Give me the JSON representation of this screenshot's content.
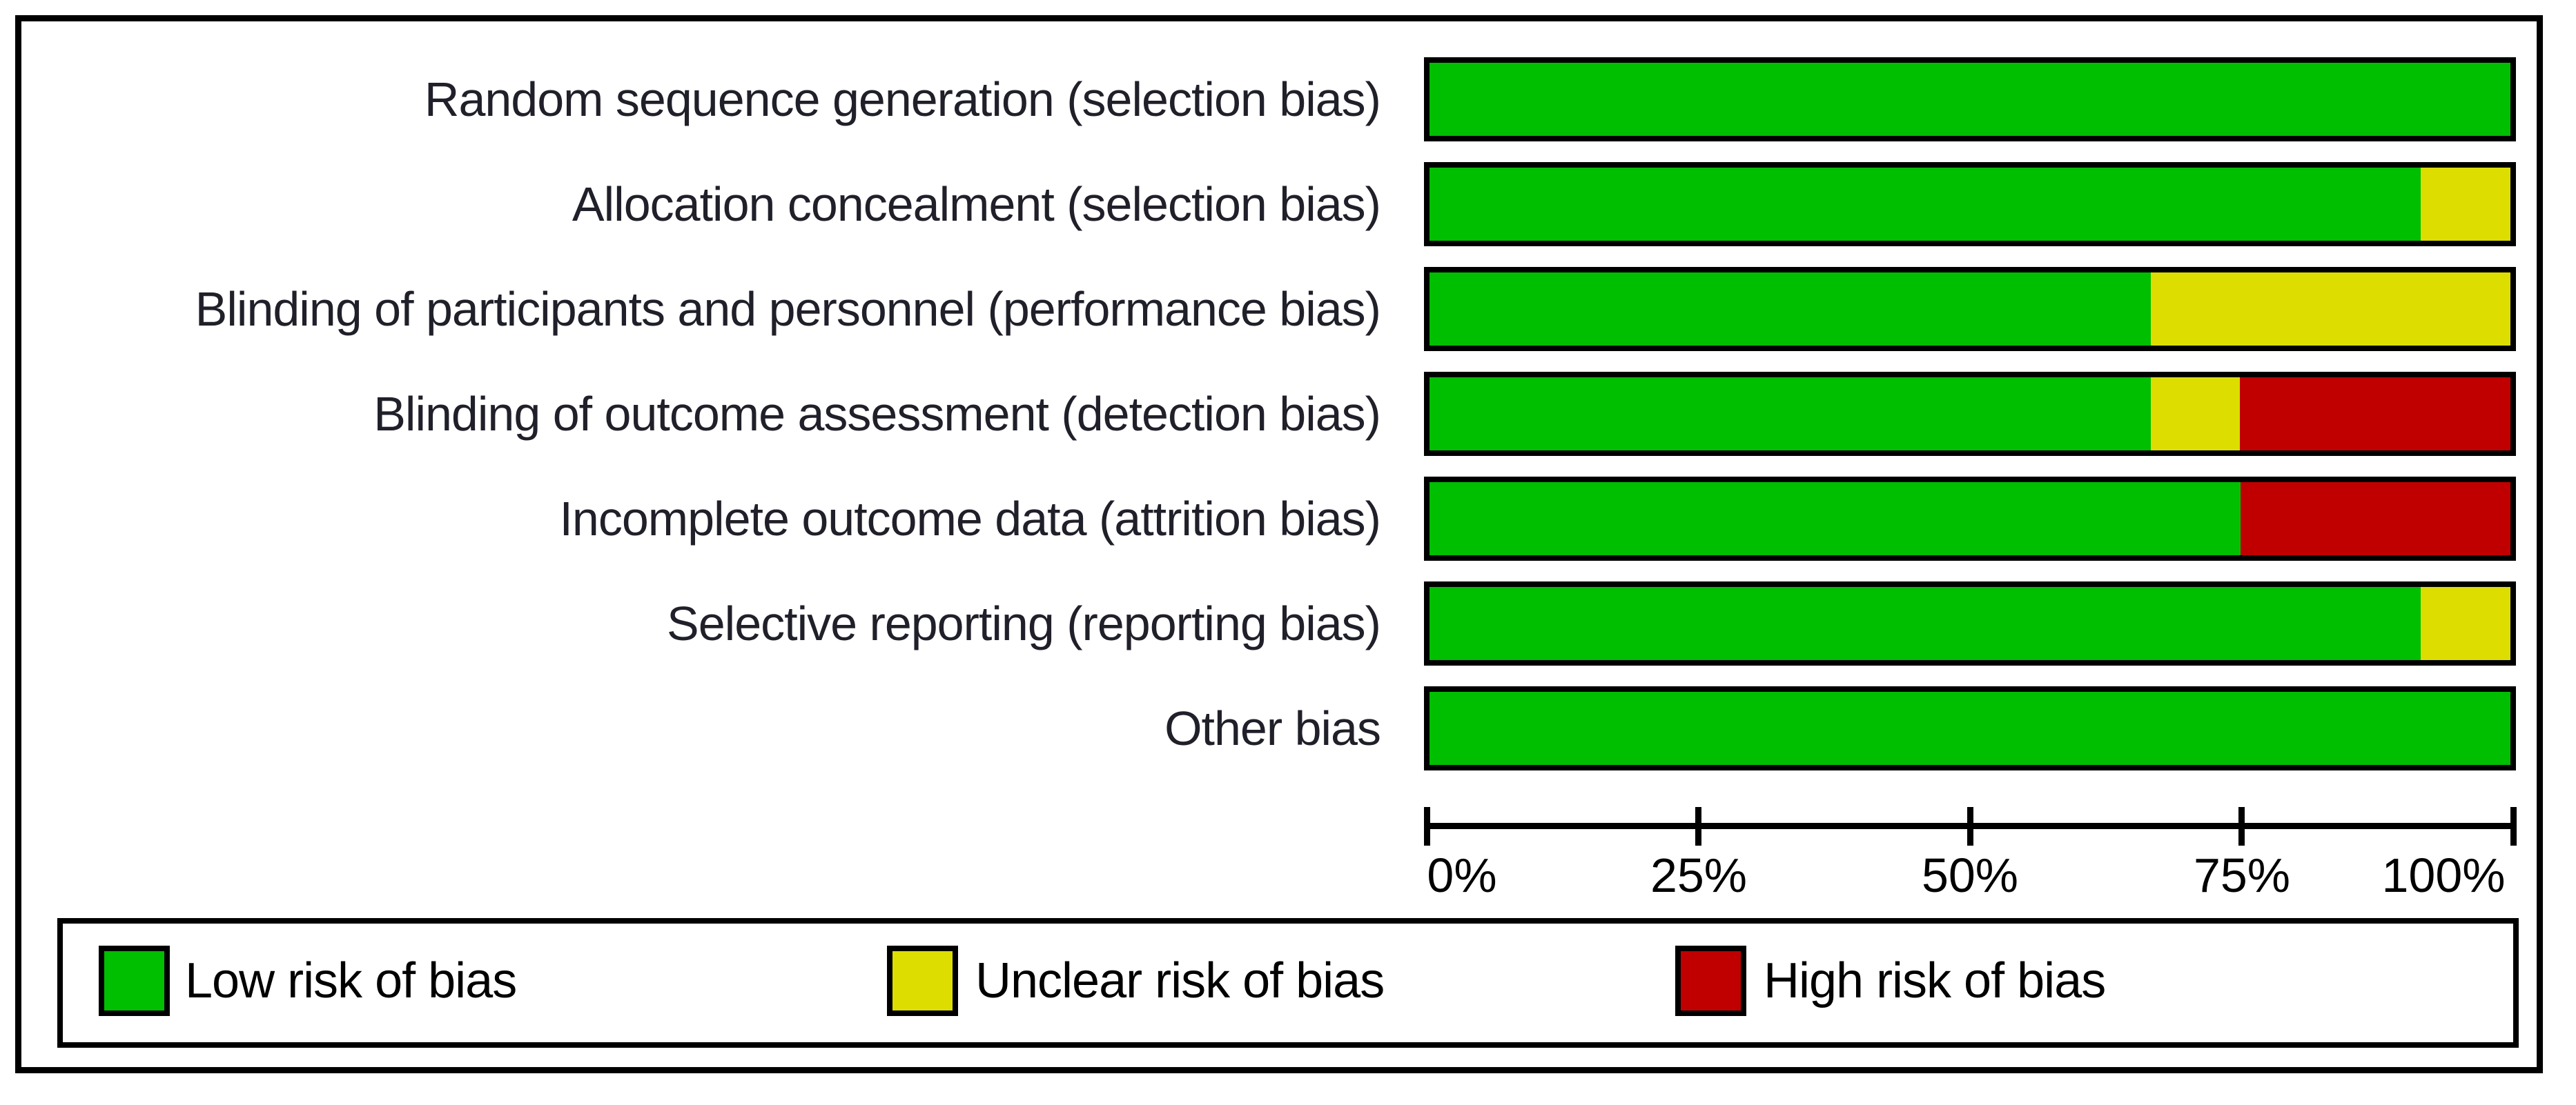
{
  "chart_data": {
    "type": "bar",
    "orientation": "horizontal",
    "stacked": true,
    "units": "percent of studies",
    "categories": [
      "Random sequence generation (selection bias)",
      "Allocation concealment (selection bias)",
      "Blinding of participants and personnel (performance bias)",
      "Blinding of outcome assessment (detection bias)",
      "Incomplete outcome data (attrition bias)",
      "Selective reporting (reporting bias)",
      "Other bias"
    ],
    "series": [
      {
        "name": "Low risk of bias",
        "color": "#00BE00",
        "values": [
          100,
          91.7,
          66.7,
          66.7,
          75,
          91.7,
          100
        ]
      },
      {
        "name": "Unclear risk of bias",
        "color": "#DDDD00",
        "values": [
          0,
          8.3,
          33.3,
          8.3,
          0,
          8.3,
          0
        ]
      },
      {
        "name": "High risk of bias",
        "color": "#C00000",
        "values": [
          0,
          0,
          0,
          25,
          25,
          0,
          0
        ]
      }
    ],
    "x_axis": {
      "range": [
        0,
        100
      ],
      "tick_labels": [
        "0%",
        "25%",
        "50%",
        "75%",
        "100%"
      ],
      "tick_values": [
        0,
        25,
        50,
        75,
        100
      ]
    },
    "legend_position": "bottom",
    "grid": false
  },
  "legend": {
    "items": [
      {
        "label": "Low risk of bias",
        "color": "#00BE00"
      },
      {
        "label": "Unclear risk of bias",
        "color": "#DDDD00"
      },
      {
        "label": "High risk of bias",
        "color": "#C00000"
      }
    ]
  },
  "frame_color": "#000000",
  "background_color": "#ffffff"
}
